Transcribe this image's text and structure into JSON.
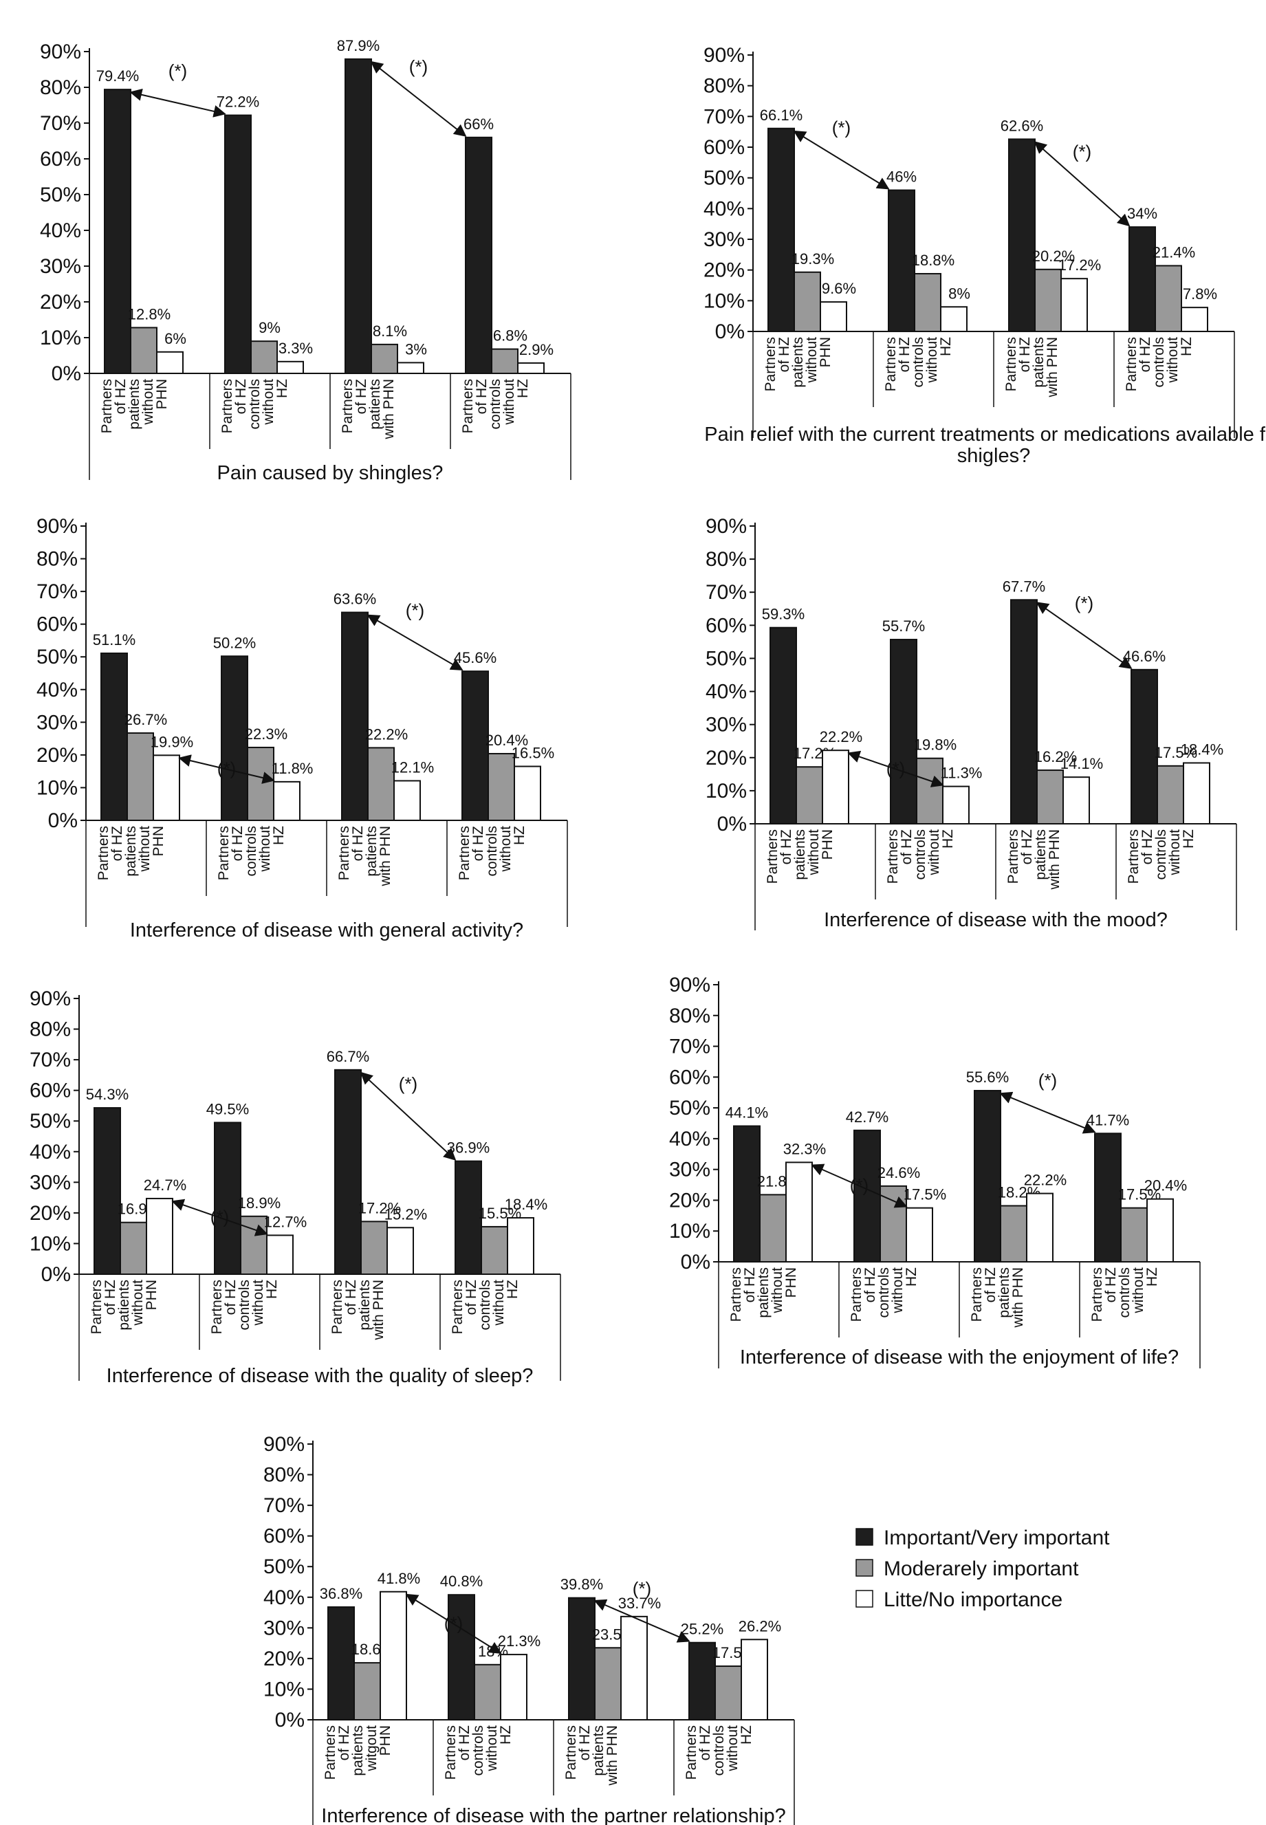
{
  "colors": {
    "important": "#1e1e1e",
    "moderate": "#999999",
    "little": "#ffffff",
    "axis": "#111111"
  },
  "legend": [
    {
      "label": "Important/Very important",
      "color": "#1e1e1e"
    },
    {
      "label": "Moderarely important",
      "color": "#999999"
    },
    {
      "label": "Litte/No importance",
      "color": "#ffffff"
    }
  ],
  "chart_data": [
    {
      "type": "bar",
      "title": "Pain caused by shingles?",
      "ylim": [
        0,
        90
      ],
      "yticks": [
        "0%",
        "10%",
        "20%",
        "30%",
        "40%",
        "50%",
        "60%",
        "70%",
        "80%",
        "90%"
      ],
      "categories": [
        [
          "Partners",
          "of HZ",
          "patients",
          "without",
          "PHN"
        ],
        [
          "Partners",
          "of HZ",
          "controls",
          "without",
          "HZ"
        ],
        [
          "Partners",
          "of HZ",
          "patients",
          "with PHN"
        ],
        [
          "Partners",
          "of HZ",
          "controls",
          "without",
          "HZ"
        ]
      ],
      "series": [
        {
          "name": "Important/Very important",
          "values": [
            79.4,
            72.2,
            87.9,
            66
          ],
          "labels": [
            "79.4%",
            "72.2%",
            "87.9%",
            "66%"
          ]
        },
        {
          "name": "Moderarely important",
          "values": [
            12.8,
            9,
            8.1,
            6.8
          ],
          "labels": [
            "12.8%",
            "9%",
            "8.1%",
            "6.8%"
          ]
        },
        {
          "name": "Litte/No importance",
          "values": [
            6,
            3.3,
            3,
            2.9
          ],
          "labels": [
            "6%",
            "3.3%",
            "3%",
            "2.9%"
          ]
        }
      ],
      "comparisons": [
        {
          "from": [
            0,
            0
          ],
          "to": [
            1,
            0
          ],
          "label": "(*)"
        },
        {
          "from": [
            2,
            0
          ],
          "to": [
            3,
            0
          ],
          "label": "(*)"
        }
      ]
    },
    {
      "type": "bar",
      "title": "Pain relief with the current treatments or medications available for shigles?",
      "ylim": [
        0,
        90
      ],
      "yticks": [
        "0%",
        "10%",
        "20%",
        "30%",
        "40%",
        "50%",
        "60%",
        "70%",
        "80%",
        "90%"
      ],
      "categories": [
        [
          "Partners",
          "of HZ",
          "patients",
          "without",
          "PHN"
        ],
        [
          "Partners",
          "of HZ",
          "controls",
          "without",
          "HZ"
        ],
        [
          "Partners",
          "of HZ",
          "patients",
          "with PHN"
        ],
        [
          "Partners",
          "of HZ",
          "controls",
          "without",
          "HZ"
        ]
      ],
      "series": [
        {
          "name": "Important/Very important",
          "values": [
            66.1,
            46,
            62.6,
            34
          ],
          "labels": [
            "66.1%",
            "46%",
            "62.6%",
            "34%"
          ]
        },
        {
          "name": "Moderarely important",
          "values": [
            19.3,
            18.8,
            20.2,
            21.4
          ],
          "labels": [
            "19.3%",
            "18.8%",
            "20.2%",
            "21.4%"
          ]
        },
        {
          "name": "Litte/No importance",
          "values": [
            9.6,
            8,
            17.2,
            7.8
          ],
          "labels": [
            "9.6%",
            "8%",
            "17.2%",
            "7.8%"
          ]
        }
      ],
      "comparisons": [
        {
          "from": [
            0,
            0
          ],
          "to": [
            1,
            0
          ],
          "label": "(*)"
        },
        {
          "from": [
            2,
            0
          ],
          "to": [
            3,
            0
          ],
          "label": "(*)"
        }
      ]
    },
    {
      "type": "bar",
      "title": "Interference of disease with general activity?",
      "ylim": [
        0,
        90
      ],
      "yticks": [
        "0%",
        "10%",
        "20%",
        "30%",
        "40%",
        "50%",
        "60%",
        "70%",
        "80%",
        "90%"
      ],
      "categories": [
        [
          "Partners",
          "of HZ",
          "patients",
          "without",
          "PHN"
        ],
        [
          "Partners",
          "of HZ",
          "controls",
          "without",
          "HZ"
        ],
        [
          "Partners",
          "of HZ",
          "patients",
          "with PHN"
        ],
        [
          "Partners",
          "of HZ",
          "controls",
          "without",
          "HZ"
        ]
      ],
      "series": [
        {
          "name": "Important/Very important",
          "values": [
            51.1,
            50.2,
            63.6,
            45.6
          ],
          "labels": [
            "51.1%",
            "50.2%",
            "63.6%",
            "45.6%"
          ]
        },
        {
          "name": "Moderarely important",
          "values": [
            26.7,
            22.3,
            22.2,
            20.4
          ],
          "labels": [
            "26.7%",
            "22.3%",
            "22.2%",
            "20.4%"
          ]
        },
        {
          "name": "Litte/No importance",
          "values": [
            19.9,
            11.8,
            12.1,
            16.5
          ],
          "labels": [
            "19.9%",
            "11.8%",
            "12.1%",
            "16.5%"
          ]
        }
      ],
      "comparisons": [
        {
          "from": [
            0,
            2
          ],
          "to": [
            1,
            2
          ],
          "label": "(*)"
        },
        {
          "from": [
            2,
            0
          ],
          "to": [
            3,
            0
          ],
          "label": "(*)"
        }
      ]
    },
    {
      "type": "bar",
      "title": "Interference of disease with the mood?",
      "ylim": [
        0,
        90
      ],
      "yticks": [
        "0%",
        "10%",
        "20%",
        "30%",
        "40%",
        "50%",
        "60%",
        "70%",
        "80%",
        "90%"
      ],
      "categories": [
        [
          "Partners",
          "of HZ",
          "patients",
          "without",
          "PHN"
        ],
        [
          "Partners",
          "of HZ",
          "controls",
          "without",
          "HZ"
        ],
        [
          "Partners",
          "of HZ",
          "patients",
          "with PHN"
        ],
        [
          "Partners",
          "of HZ",
          "controls",
          "without",
          "HZ"
        ]
      ],
      "series": [
        {
          "name": "Important/Very important",
          "values": [
            59.3,
            55.7,
            67.7,
            46.6
          ],
          "labels": [
            "59.3%",
            "55.7%",
            "67.7%",
            "46.6%"
          ]
        },
        {
          "name": "Moderarely important",
          "values": [
            17.2,
            19.8,
            16.2,
            17.5
          ],
          "labels": [
            "17.2%",
            "19.8%",
            "16.2%",
            "17.5%"
          ]
        },
        {
          "name": "Litte/No importance",
          "values": [
            22.2,
            11.3,
            14.1,
            18.4
          ],
          "labels": [
            "22.2%",
            "11.3%",
            "14.1%",
            "18.4%"
          ]
        }
      ],
      "comparisons": [
        {
          "from": [
            0,
            2
          ],
          "to": [
            1,
            2
          ],
          "label": "(*)"
        },
        {
          "from": [
            2,
            0
          ],
          "to": [
            3,
            0
          ],
          "label": "(*)"
        }
      ]
    },
    {
      "type": "bar",
      "title": "Interference of disease with the quality of sleep?",
      "ylim": [
        0,
        90
      ],
      "yticks": [
        "0%",
        "10%",
        "20%",
        "30%",
        "40%",
        "50%",
        "60%",
        "70%",
        "80%",
        "90%"
      ],
      "categories": [
        [
          "Partners",
          "of HZ",
          "patients",
          "without",
          "PHN"
        ],
        [
          "Partners",
          "of HZ",
          "controls",
          "without",
          "HZ"
        ],
        [
          "Partners",
          "of HZ",
          "patients",
          "with PHN"
        ],
        [
          "Partners",
          "of HZ",
          "controls",
          "without",
          "HZ"
        ]
      ],
      "series": [
        {
          "name": "Important/Very important",
          "values": [
            54.3,
            49.5,
            66.7,
            36.9
          ],
          "labels": [
            "54.3%",
            "49.5%",
            "66.7%",
            "36.9%"
          ]
        },
        {
          "name": "Moderarely important",
          "values": [
            16.9,
            18.9,
            17.2,
            15.5
          ],
          "labels": [
            "16.9%",
            "18.9%",
            "17.2%",
            "15.5%"
          ]
        },
        {
          "name": "Litte/No importance",
          "values": [
            24.7,
            12.7,
            15.2,
            18.4
          ],
          "labels": [
            "24.7%",
            "12.7%",
            "15.2%",
            "18.4%"
          ]
        }
      ],
      "comparisons": [
        {
          "from": [
            0,
            2
          ],
          "to": [
            1,
            2
          ],
          "label": "(*)"
        },
        {
          "from": [
            2,
            0
          ],
          "to": [
            3,
            0
          ],
          "label": "(*)"
        }
      ]
    },
    {
      "type": "bar",
      "title": "Interference of disease with the enjoyment of life?",
      "ylim": [
        0,
        90
      ],
      "yticks": [
        "0%",
        "10%",
        "20%",
        "30%",
        "40%",
        "50%",
        "60%",
        "70%",
        "80%",
        "90%"
      ],
      "categories": [
        [
          "Partners",
          "of HZ",
          "patients",
          "without",
          "PHN"
        ],
        [
          "Partners",
          "of HZ",
          "controls",
          "without",
          "HZ"
        ],
        [
          "Partners",
          "of HZ",
          "patients",
          "with PHN"
        ],
        [
          "Partners",
          "of HZ",
          "controls",
          "without",
          "HZ"
        ]
      ],
      "series": [
        {
          "name": "Important/Very important",
          "values": [
            44.1,
            42.7,
            55.6,
            41.7
          ],
          "labels": [
            "44.1%",
            "42.7%",
            "55.6%",
            "41.7%"
          ]
        },
        {
          "name": "Moderarely important",
          "values": [
            21.8,
            24.6,
            18.2,
            17.5
          ],
          "labels": [
            "21.8%",
            "24.6%",
            "18.2%",
            "17.5%"
          ]
        },
        {
          "name": "Litte/No importance",
          "values": [
            32.3,
            17.5,
            22.2,
            20.4
          ],
          "labels": [
            "32.3%",
            "17.5%",
            "22.2%",
            "20.4%"
          ]
        }
      ],
      "comparisons": [
        {
          "from": [
            0,
            2
          ],
          "to": [
            1,
            2
          ],
          "label": "(*)"
        },
        {
          "from": [
            2,
            0
          ],
          "to": [
            3,
            0
          ],
          "label": "(*)"
        }
      ]
    },
    {
      "type": "bar",
      "title": "Interference of disease with the partner relationship?",
      "ylim": [
        0,
        90
      ],
      "yticks": [
        "0%",
        "10%",
        "20%",
        "30%",
        "40%",
        "50%",
        "60%",
        "70%",
        "80%",
        "90%"
      ],
      "categories": [
        [
          "Partners",
          "of HZ",
          "patients",
          "witgout",
          "PHN"
        ],
        [
          "Partners",
          "of HZ",
          "controls",
          "without",
          "HZ"
        ],
        [
          "Partners",
          "of HZ",
          "patients",
          "with PHN"
        ],
        [
          "Partners",
          "of HZ",
          "controls",
          "without",
          "HZ"
        ]
      ],
      "series": [
        {
          "name": "Important/Very important",
          "values": [
            36.8,
            40.8,
            39.8,
            25.2
          ],
          "labels": [
            "36.8%",
            "40.8%",
            "39.8%",
            "25.2%"
          ]
        },
        {
          "name": "Moderarely important",
          "values": [
            18.6,
            18,
            23.5,
            17.5
          ],
          "labels": [
            "18.6%",
            "18%",
            "23.5%",
            "17.5%"
          ]
        },
        {
          "name": "Litte/No importance",
          "values": [
            41.8,
            21.3,
            33.7,
            26.2
          ],
          "labels": [
            "41.8%",
            "21.3%",
            "33.7%",
            "26.2%"
          ]
        }
      ],
      "comparisons": [
        {
          "from": [
            0,
            2
          ],
          "to": [
            1,
            2
          ],
          "label": "(*)"
        },
        {
          "from": [
            2,
            0
          ],
          "to": [
            3,
            0
          ],
          "label": "(*)"
        }
      ]
    }
  ]
}
